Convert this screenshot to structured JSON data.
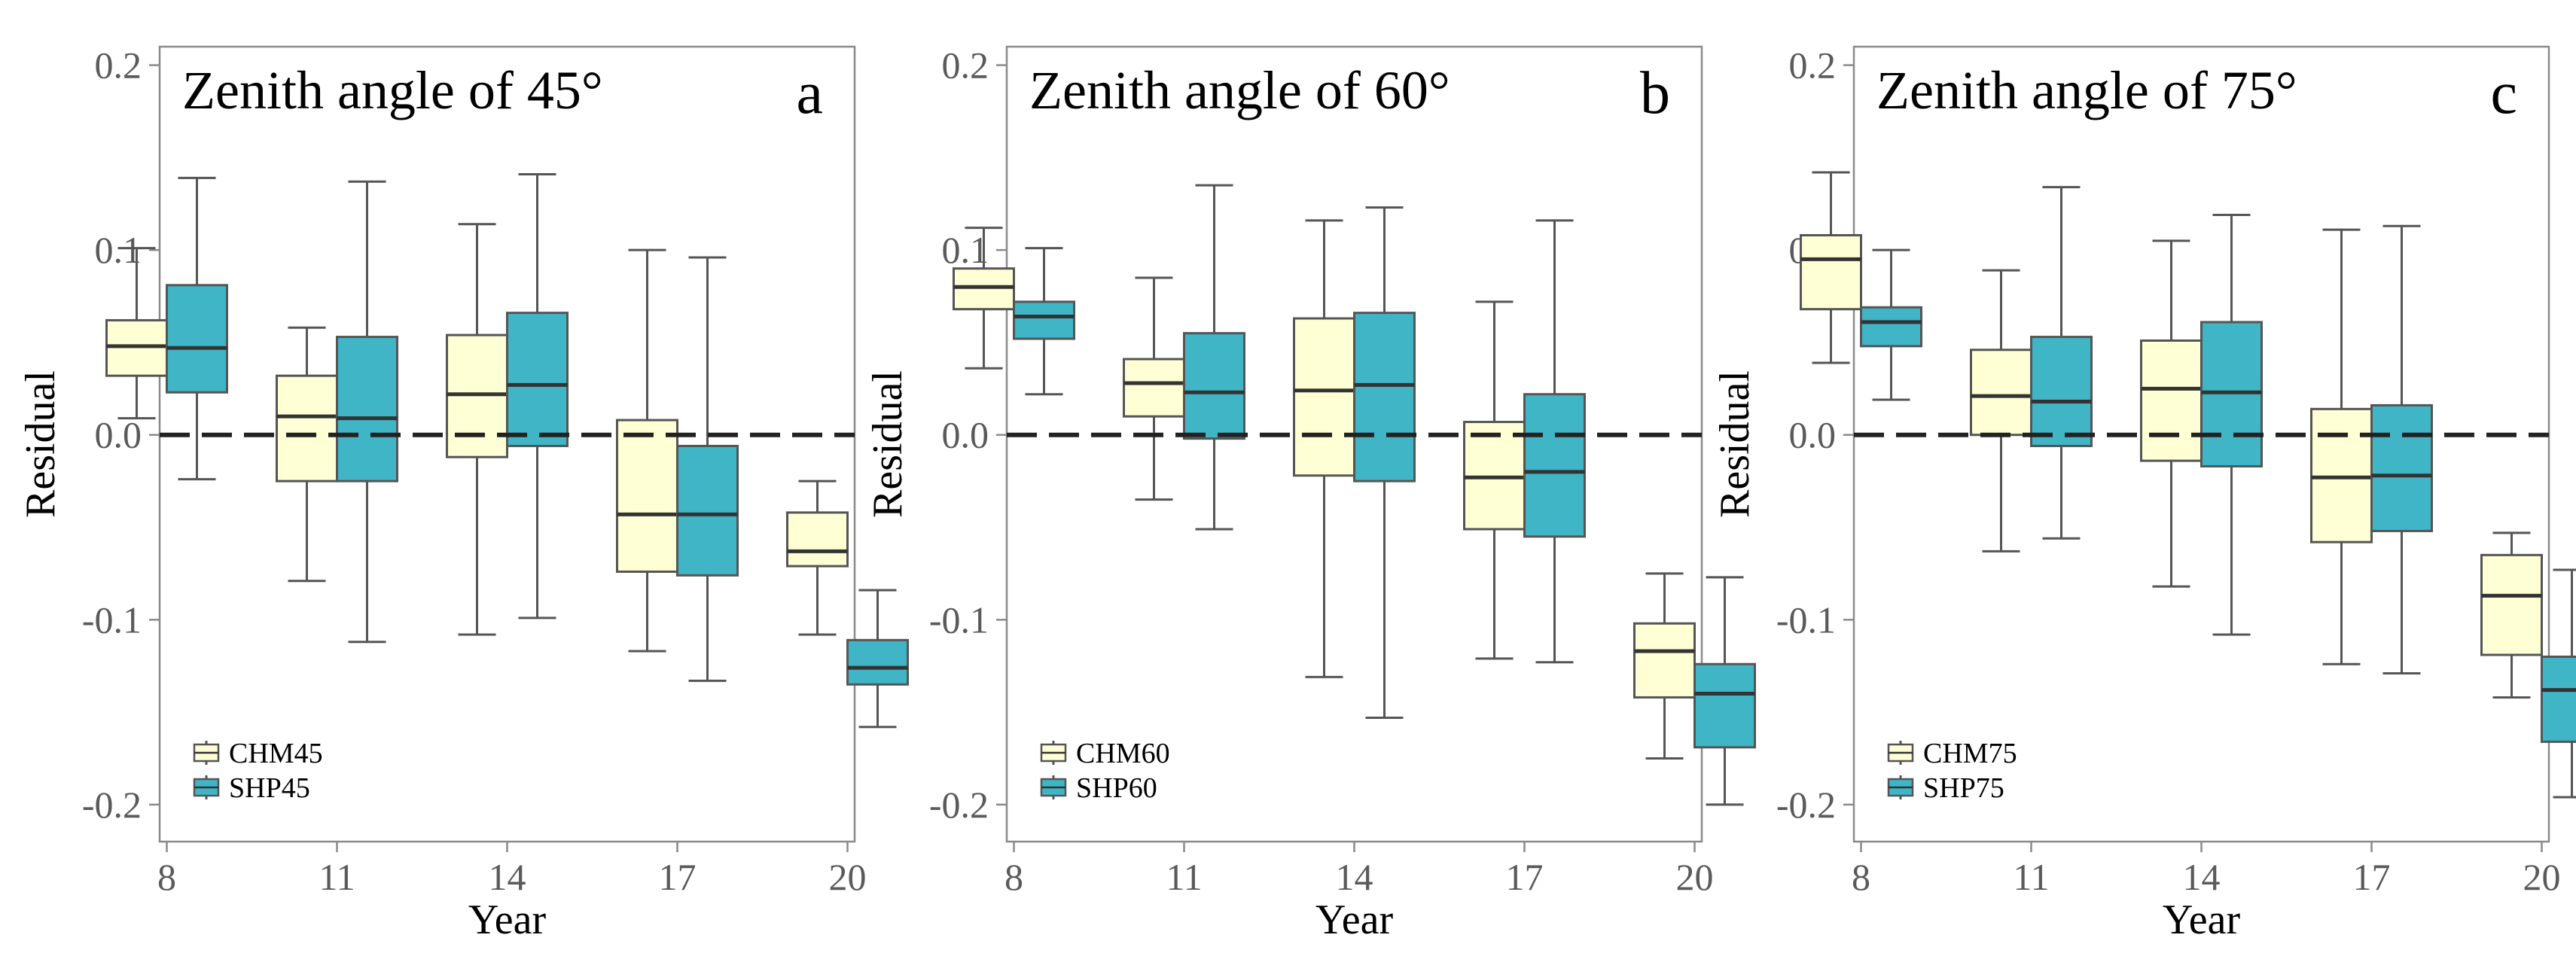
{
  "colors": {
    "chm": "#FFFFD5",
    "shp": "#3FB5C6",
    "box_stroke": "#555555"
  },
  "chart_data": [
    {
      "type": "box",
      "title": "Zenith angle of 45°",
      "panel_label": "a",
      "xlabel": "Year",
      "ylabel": "Residual",
      "categories": [
        "8",
        "11",
        "14",
        "17",
        "20"
      ],
      "yticks": [
        "-0.2",
        "-0.1",
        "0.0",
        "0.1",
        "0.2"
      ],
      "ylim": [
        -0.22,
        0.21
      ],
      "reference_line": 0,
      "legend_position": "bottom-left",
      "series": [
        {
          "name": "CHM45",
          "color": "#FFFFD5",
          "boxes": [
            {
              "min": 0.009,
              "q1": 0.032,
              "median": 0.048,
              "q3": 0.062,
              "max": 0.101
            },
            {
              "min": -0.079,
              "q1": -0.025,
              "median": 0.01,
              "q3": 0.032,
              "max": 0.058
            },
            {
              "min": -0.108,
              "q1": -0.012,
              "median": 0.022,
              "q3": 0.054,
              "max": 0.114
            },
            {
              "min": -0.117,
              "q1": -0.074,
              "median": -0.043,
              "q3": 0.008,
              "max": 0.1
            },
            {
              "min": -0.108,
              "q1": -0.071,
              "median": -0.063,
              "q3": -0.042,
              "max": -0.025
            }
          ]
        },
        {
          "name": "SHP45",
          "color": "#3FB5C6",
          "boxes": [
            {
              "min": -0.024,
              "q1": 0.023,
              "median": 0.047,
              "q3": 0.081,
              "max": 0.139
            },
            {
              "min": -0.112,
              "q1": -0.025,
              "median": 0.009,
              "q3": 0.053,
              "max": 0.137
            },
            {
              "min": -0.099,
              "q1": -0.006,
              "median": 0.027,
              "q3": 0.066,
              "max": 0.141
            },
            {
              "min": -0.133,
              "q1": -0.076,
              "median": -0.043,
              "q3": -0.006,
              "max": 0.096
            },
            {
              "min": -0.158,
              "q1": -0.135,
              "median": -0.126,
              "q3": -0.111,
              "max": -0.084
            }
          ]
        }
      ]
    },
    {
      "type": "box",
      "title": "Zenith angle of 60°",
      "panel_label": "b",
      "xlabel": "Year",
      "ylabel": "Residual",
      "categories": [
        "8",
        "11",
        "14",
        "17",
        "20"
      ],
      "yticks": [
        "-0.2",
        "-0.1",
        "0.0",
        "0.1",
        "0.2"
      ],
      "ylim": [
        -0.22,
        0.21
      ],
      "reference_line": 0,
      "legend_position": "bottom-left",
      "series": [
        {
          "name": "CHM60",
          "color": "#FFFFD5",
          "boxes": [
            {
              "min": 0.036,
              "q1": 0.068,
              "median": 0.08,
              "q3": 0.09,
              "max": 0.112
            },
            {
              "min": -0.035,
              "q1": 0.01,
              "median": 0.028,
              "q3": 0.041,
              "max": 0.085
            },
            {
              "min": -0.131,
              "q1": -0.022,
              "median": 0.024,
              "q3": 0.063,
              "max": 0.116
            },
            {
              "min": -0.121,
              "q1": -0.051,
              "median": -0.023,
              "q3": 0.007,
              "max": 0.072
            },
            {
              "min": -0.175,
              "q1": -0.142,
              "median": -0.117,
              "q3": -0.102,
              "max": -0.075
            }
          ]
        },
        {
          "name": "SHP60",
          "color": "#3FB5C6",
          "boxes": [
            {
              "min": 0.022,
              "q1": 0.052,
              "median": 0.064,
              "q3": 0.072,
              "max": 0.101
            },
            {
              "min": -0.051,
              "q1": -0.002,
              "median": 0.023,
              "q3": 0.055,
              "max": 0.135
            },
            {
              "min": -0.153,
              "q1": -0.025,
              "median": 0.027,
              "q3": 0.066,
              "max": 0.123
            },
            {
              "min": -0.123,
              "q1": -0.055,
              "median": -0.02,
              "q3": 0.022,
              "max": 0.116
            },
            {
              "min": -0.2,
              "q1": -0.169,
              "median": -0.14,
              "q3": -0.124,
              "max": -0.077
            }
          ]
        }
      ]
    },
    {
      "type": "box",
      "title": "Zenith angle of 75°",
      "panel_label": "c",
      "xlabel": "Year",
      "ylabel": "Residual",
      "categories": [
        "8",
        "11",
        "14",
        "17",
        "20"
      ],
      "yticks": [
        "-0.2",
        "-0.1",
        "0.0",
        "0.1",
        "0.2"
      ],
      "ylim": [
        -0.22,
        0.21
      ],
      "reference_line": 0,
      "legend_position": "bottom-left",
      "series": [
        {
          "name": "CHM75",
          "color": "#FFFFD5",
          "boxes": [
            {
              "min": 0.039,
              "q1": 0.068,
              "median": 0.095,
              "q3": 0.108,
              "max": 0.142
            },
            {
              "min": -0.063,
              "q1": 0.0,
              "median": 0.021,
              "q3": 0.046,
              "max": 0.089
            },
            {
              "min": -0.082,
              "q1": -0.014,
              "median": 0.025,
              "q3": 0.051,
              "max": 0.105
            },
            {
              "min": -0.124,
              "q1": -0.058,
              "median": -0.023,
              "q3": 0.014,
              "max": 0.111
            },
            {
              "min": -0.142,
              "q1": -0.119,
              "median": -0.087,
              "q3": -0.065,
              "max": -0.053
            }
          ]
        },
        {
          "name": "SHP75",
          "color": "#3FB5C6",
          "boxes": [
            {
              "min": 0.019,
              "q1": 0.048,
              "median": 0.061,
              "q3": 0.069,
              "max": 0.1
            },
            {
              "min": -0.056,
              "q1": -0.006,
              "median": 0.018,
              "q3": 0.053,
              "max": 0.134
            },
            {
              "min": -0.108,
              "q1": -0.017,
              "median": 0.023,
              "q3": 0.061,
              "max": 0.119
            },
            {
              "min": -0.129,
              "q1": -0.052,
              "median": -0.022,
              "q3": 0.016,
              "max": 0.113
            },
            {
              "min": -0.196,
              "q1": -0.166,
              "median": -0.138,
              "q3": -0.12,
              "max": -0.073
            }
          ]
        }
      ]
    }
  ]
}
